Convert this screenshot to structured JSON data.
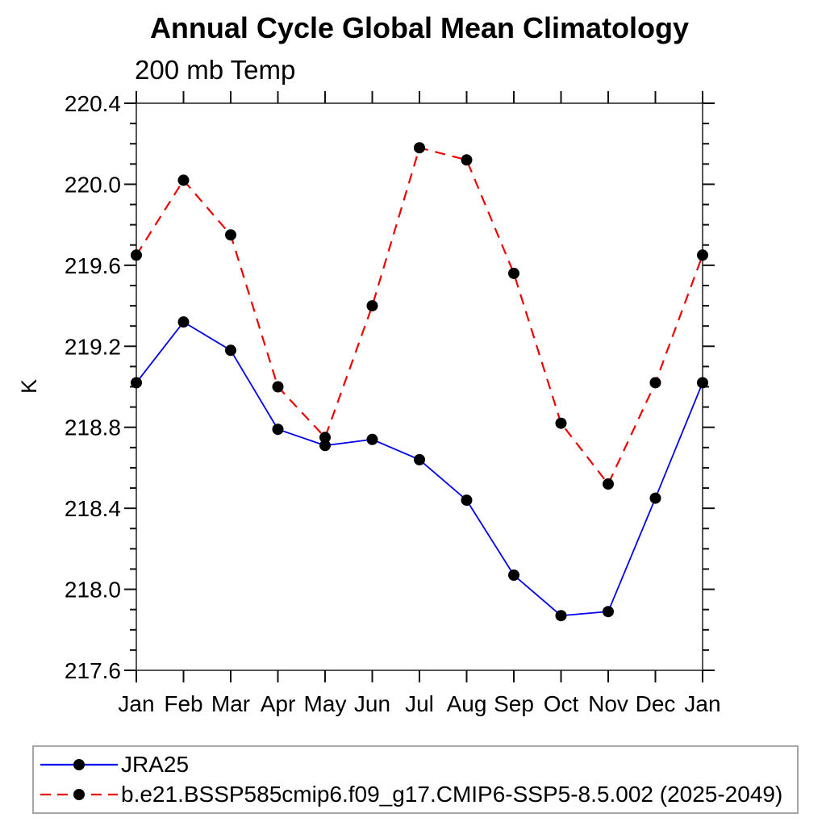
{
  "page": {
    "background": "#ffffff"
  },
  "chart_data": {
    "type": "line",
    "title": "Annual Cycle Global Mean Climatology",
    "subtitle": "200 mb Temp",
    "xlabel": "",
    "ylabel": "K",
    "categories": [
      "Jan",
      "Feb",
      "Mar",
      "Apr",
      "May",
      "Jun",
      "Jul",
      "Aug",
      "Sep",
      "Oct",
      "Nov",
      "Dec",
      "Jan"
    ],
    "ylim": [
      217.6,
      220.4
    ],
    "ytick_major_step": 0.4,
    "ytick_minor_step": 0.1,
    "ytick_labels": [
      "217.6",
      "218.0",
      "218.4",
      "218.8",
      "219.2",
      "219.6",
      "220.0",
      "220.4"
    ],
    "grid": false,
    "legend_position": "bottom",
    "frame_color": "#555555",
    "tick_color": "#111111",
    "marker_color": "#000000",
    "series": [
      {
        "name": "JRA25",
        "color": "#0000ee",
        "style": "solid",
        "marker": "circle",
        "values": [
          219.02,
          219.32,
          219.18,
          218.79,
          218.71,
          218.74,
          218.64,
          218.44,
          218.07,
          217.87,
          217.89,
          218.45,
          219.02
        ]
      },
      {
        "name": "b.e21.BSSP585cmip6.f09_g17.CMIP6-SSP5-8.5.002 (2025-2049)",
        "color": "#ee0000",
        "style": "dashed",
        "marker": "circle",
        "values": [
          219.65,
          220.02,
          219.75,
          219.0,
          218.75,
          219.4,
          220.18,
          220.12,
          219.56,
          218.82,
          218.52,
          219.02,
          219.65
        ]
      }
    ]
  }
}
